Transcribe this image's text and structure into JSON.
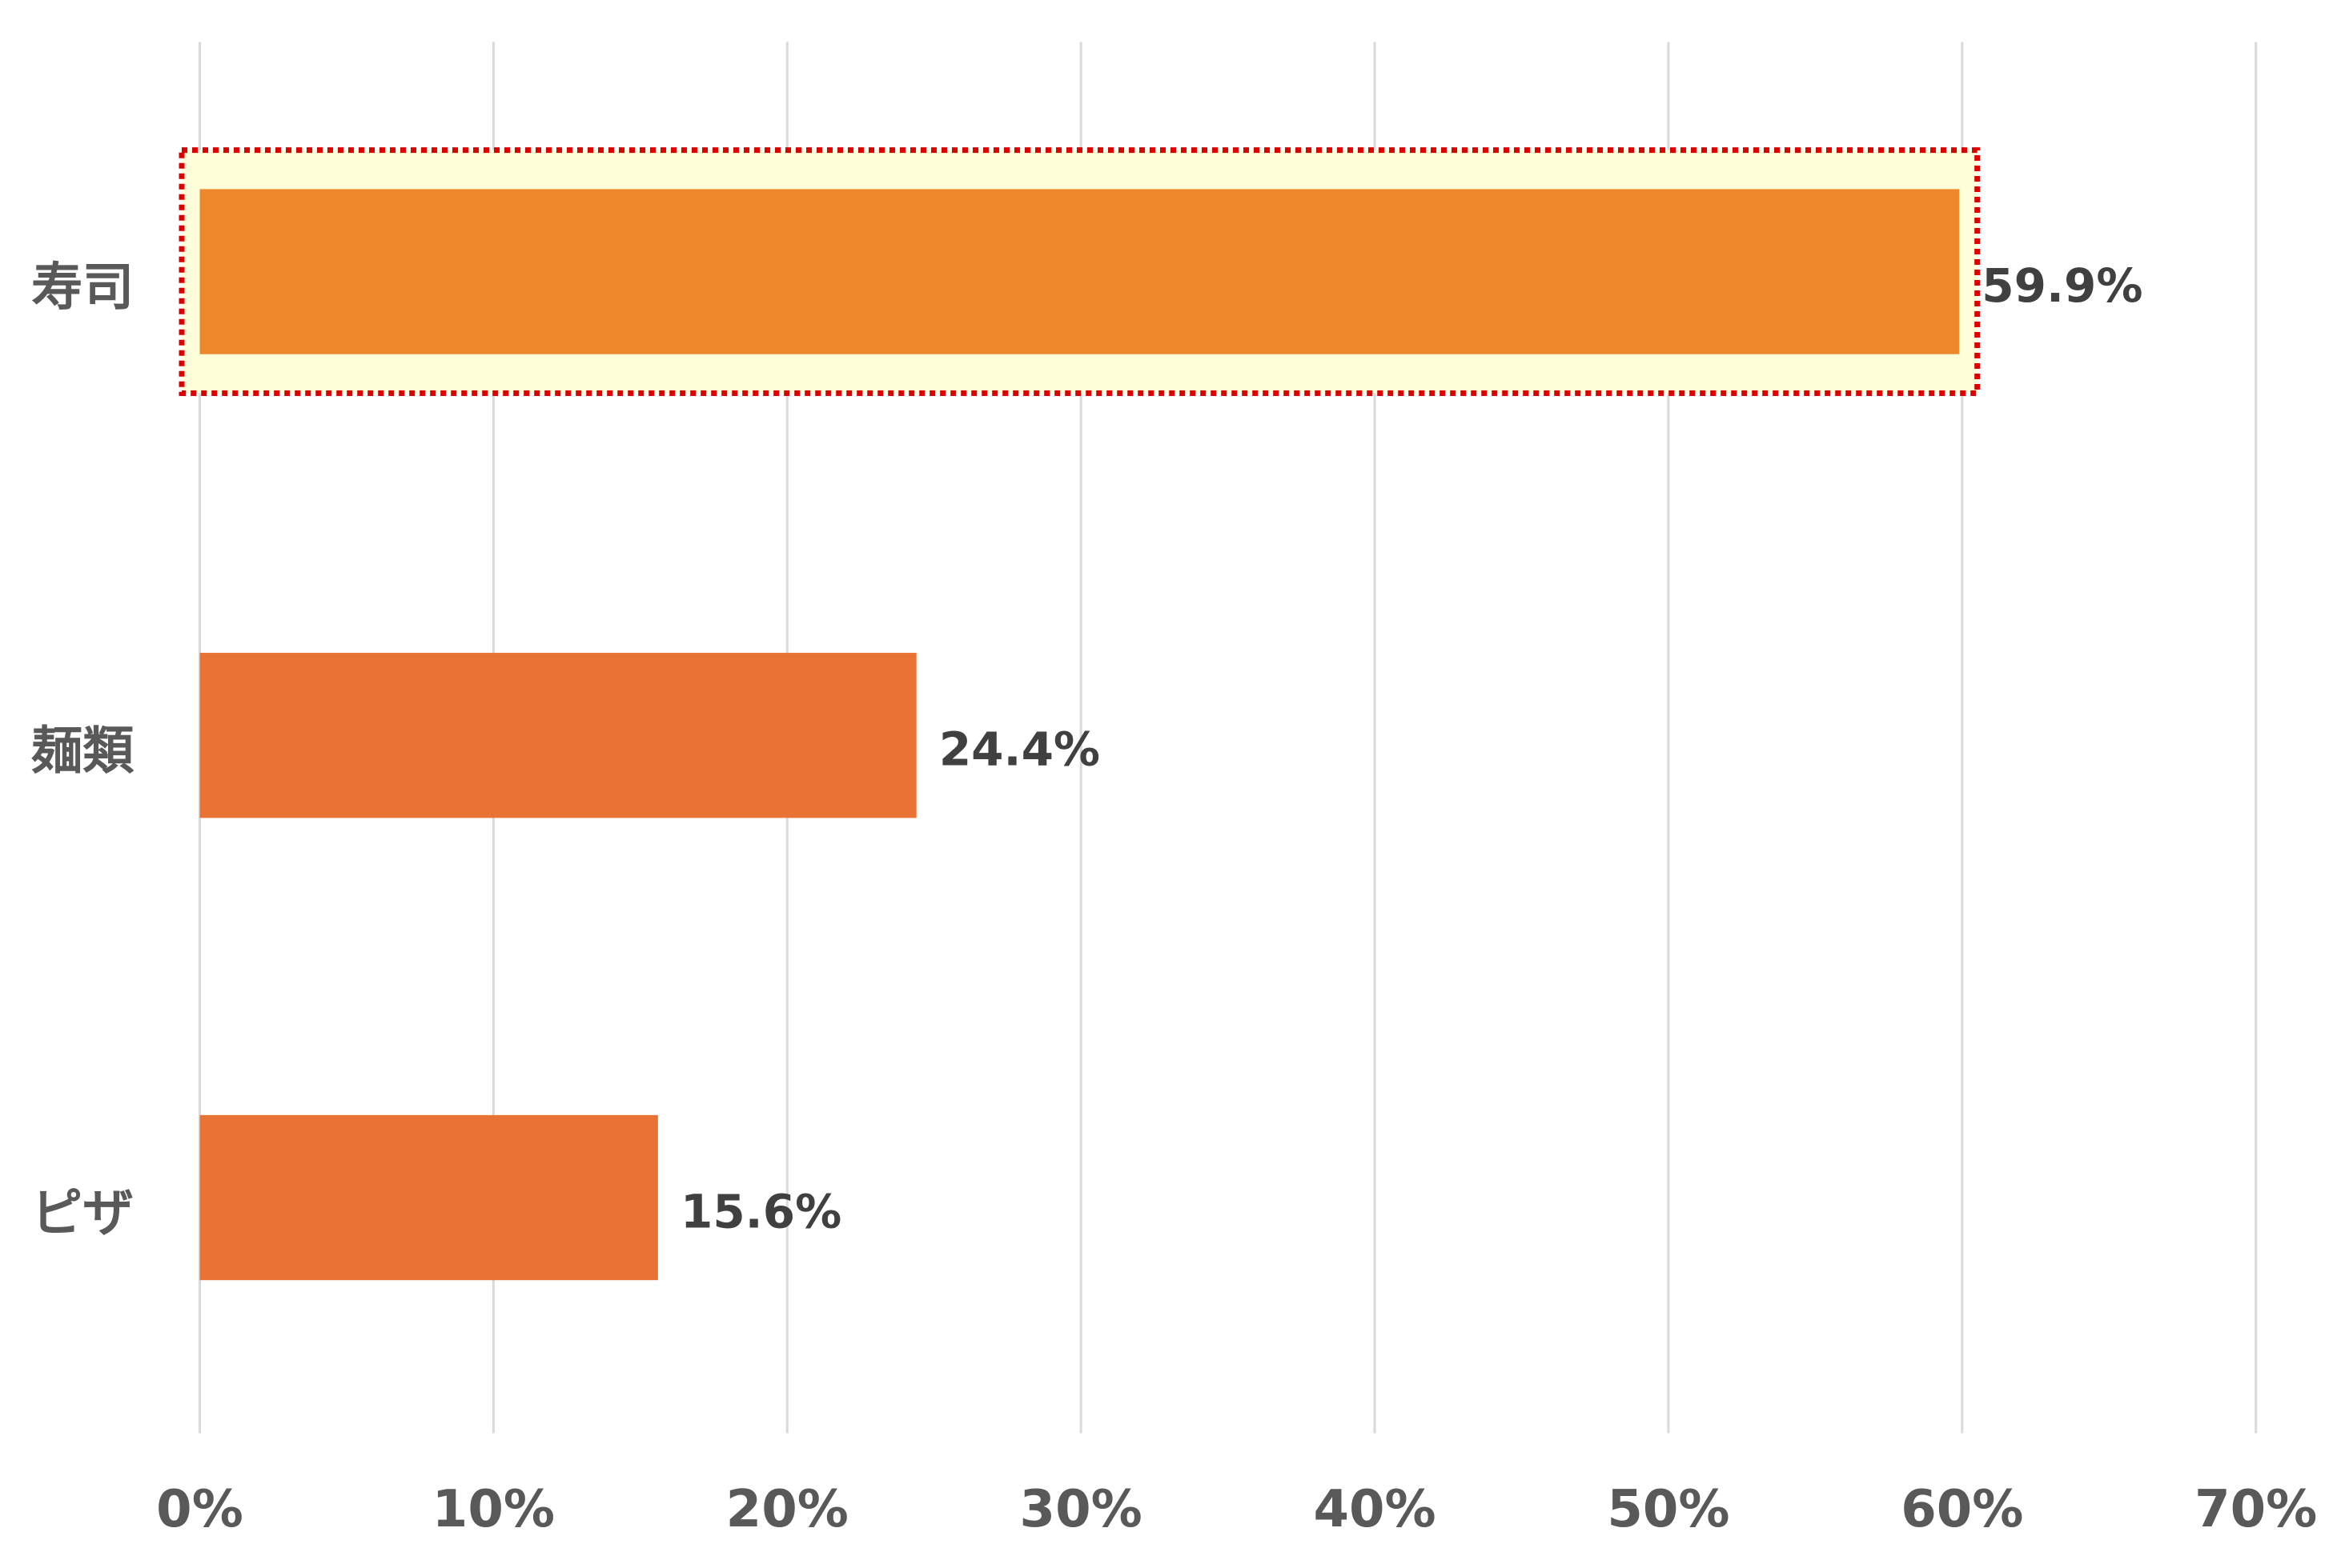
{
  "chart_data": {
    "type": "bar",
    "orientation": "horizontal",
    "categories": [
      "寿司",
      "麺類",
      "ピザ"
    ],
    "values": [
      59.9,
      24.4,
      15.6
    ],
    "data_labels": [
      "59.9%",
      "24.4%",
      "15.6%"
    ],
    "xlim": [
      0,
      70
    ],
    "x_ticks": [
      0,
      10,
      20,
      30,
      40,
      50,
      60,
      70
    ],
    "x_tick_labels": [
      "0%",
      "10%",
      "20%",
      "30%",
      "40%",
      "50%",
      "60%",
      "70%"
    ],
    "grid": true,
    "highlighted_category": "寿司",
    "colors": {
      "bar": "#e87335",
      "highlight_bar": "#ec872b",
      "highlight_background": "#ffffd9",
      "highlight_border": "#dd0000",
      "grid": "#d9d9d9"
    }
  }
}
